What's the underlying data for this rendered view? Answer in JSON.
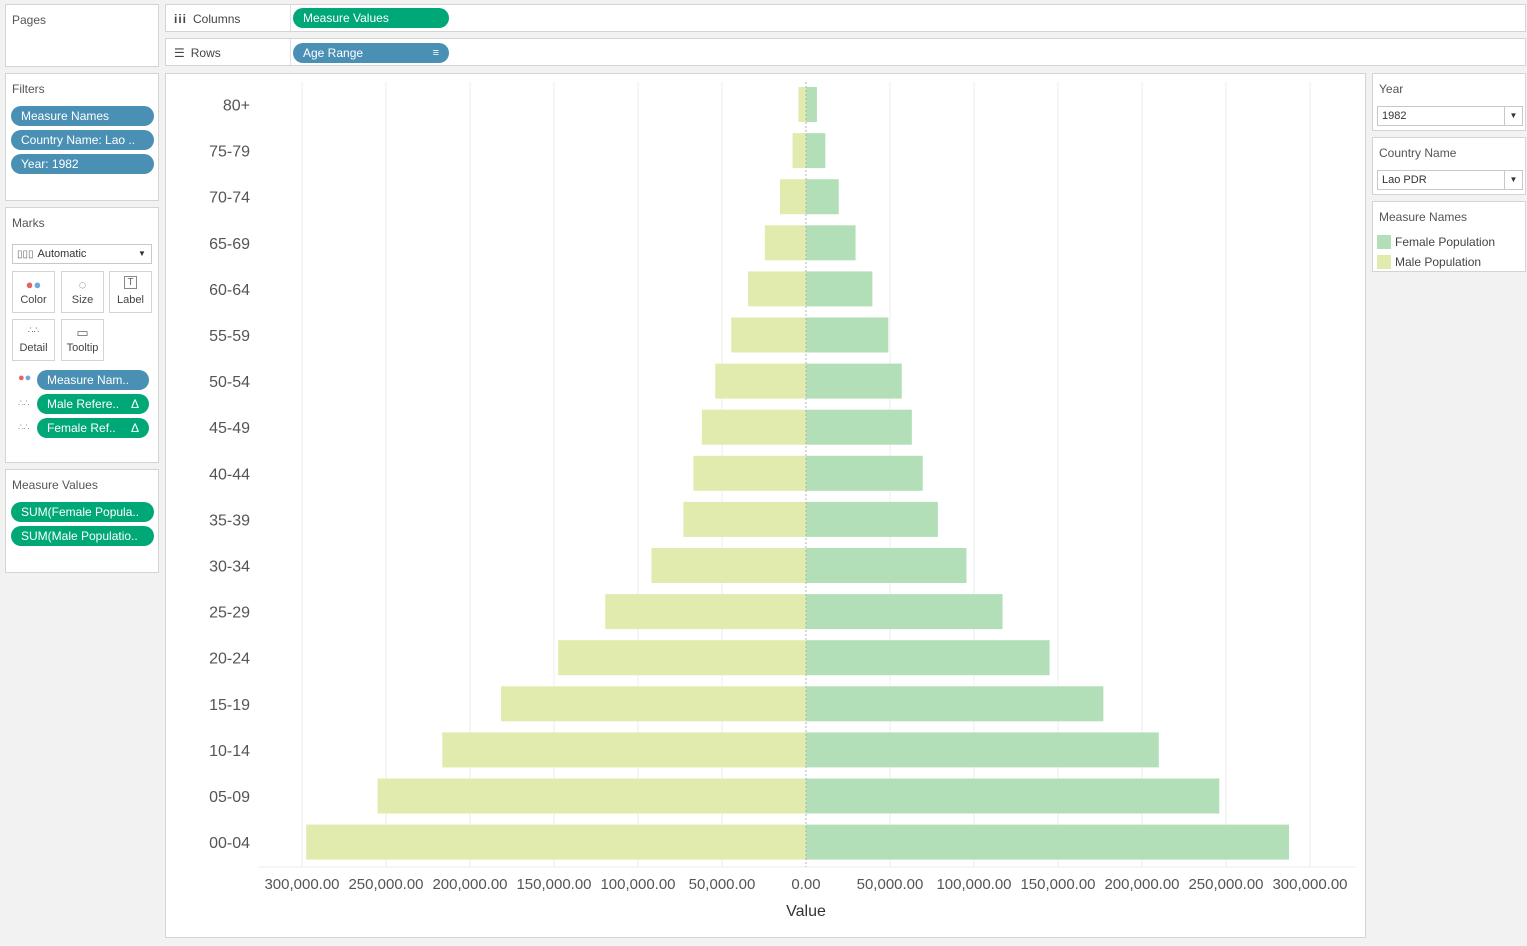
{
  "pages": {
    "title": "Pages"
  },
  "shelves": {
    "columns_label": "Columns",
    "columns_pill": "Measure Values",
    "rows_label": "Rows",
    "rows_pill": "Age Range"
  },
  "filters": {
    "title": "Filters",
    "items": [
      "Measure Names",
      "Country Name: Lao ..",
      "Year: 1982"
    ]
  },
  "marks": {
    "title": "Marks",
    "type": "Automatic",
    "buttons": [
      "Color",
      "Size",
      "Label",
      "Detail",
      "Tooltip"
    ],
    "fields": [
      "Measure Nam..",
      "Male Refere..",
      "Female Ref.."
    ],
    "delta": "Δ"
  },
  "measure_values": {
    "title": "Measure Values",
    "items": [
      "SUM(Female Popula..",
      "SUM(Male Populatio.."
    ]
  },
  "year_filter": {
    "title": "Year",
    "value": "1982"
  },
  "country_filter": {
    "title": "Country Name",
    "value": "Lao PDR"
  },
  "legend": {
    "title": "Measure Names",
    "items": [
      {
        "label": "Female Population",
        "color": "#b2dfb7"
      },
      {
        "label": "Male Population",
        "color": "#e1ebad"
      }
    ]
  },
  "colors": {
    "female": "#b2dfb7",
    "male": "#e1ebad",
    "pill_blue": "#4a90b5",
    "pill_green": "#00a878"
  },
  "chart_data": {
    "type": "bar",
    "orientation": "horizontal",
    "categories": [
      "80+",
      "75-79",
      "70-74",
      "65-69",
      "60-64",
      "55-59",
      "50-54",
      "45-49",
      "40-44",
      "35-39",
      "30-34",
      "25-29",
      "20-24",
      "15-19",
      "10-14",
      "05-09",
      "00-04"
    ],
    "series": [
      {
        "name": "Female Population",
        "values": [
          6500,
          11500,
          19500,
          29500,
          39500,
          49000,
          57000,
          63000,
          69500,
          78500,
          95500,
          117000,
          145000,
          177000,
          210000,
          246000,
          287500
        ]
      },
      {
        "name": "Male Population",
        "values": [
          -4500,
          -8000,
          -15500,
          -24500,
          -34500,
          -44500,
          -54000,
          -62000,
          -67000,
          -73000,
          -92000,
          -119500,
          -147500,
          -181500,
          -216500,
          -255000,
          -297500
        ]
      }
    ],
    "xlabel": "Value",
    "xlim": [
      -300000,
      300000
    ],
    "xticks": [
      -300000,
      -250000,
      -200000,
      -150000,
      -100000,
      -50000,
      0,
      50000,
      100000,
      150000,
      200000,
      250000,
      300000
    ],
    "xtick_labels": [
      "300,000.00",
      "250,000.00",
      "200,000.00",
      "150,000.00",
      "100,000.00",
      "50,000.00",
      "0.00",
      "50,000.00",
      "100,000.00",
      "150,000.00",
      "200,000.00",
      "250,000.00",
      "300,000.00"
    ],
    "grid": true
  }
}
